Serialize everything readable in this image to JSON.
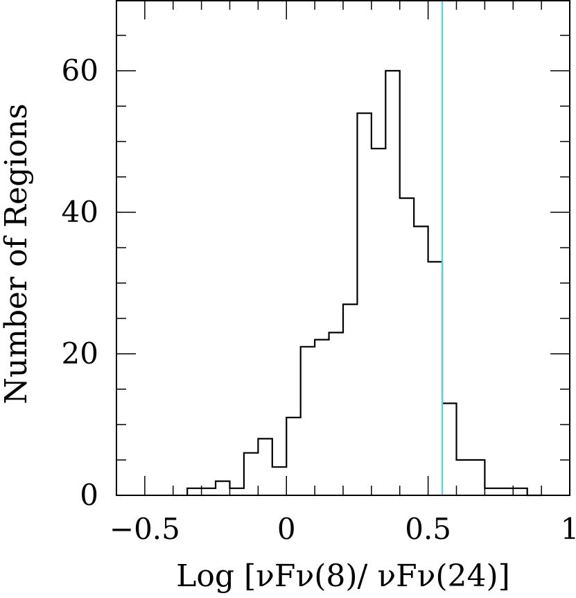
{
  "chart_data": {
    "type": "histogram",
    "xlabel": "Log [νFν(8)/ νFν(24)]",
    "ylabel": "Number of Regions",
    "xlim": [
      -0.6,
      1.0
    ],
    "ylim": [
      0,
      70
    ],
    "x_ticks": [
      {
        "value": -0.5,
        "label": "−0.5"
      },
      {
        "value": 0,
        "label": "0"
      },
      {
        "value": 0.5,
        "label": "0.5"
      },
      {
        "value": 1,
        "label": "1"
      }
    ],
    "y_ticks": [
      {
        "value": 0,
        "label": "0"
      },
      {
        "value": 20,
        "label": "20"
      },
      {
        "value": 40,
        "label": "40"
      },
      {
        "value": 60,
        "label": "60"
      }
    ],
    "x_minor_step": 0.1,
    "y_minor_step": 5,
    "grid": false,
    "bin_edges": [
      -0.35,
      -0.3,
      -0.25,
      -0.2,
      -0.15,
      -0.1,
      -0.05,
      0.0,
      0.05,
      0.1,
      0.15,
      0.2,
      0.25,
      0.3,
      0.35,
      0.4,
      0.45,
      0.5,
      0.55,
      0.6,
      0.65,
      0.7,
      0.75,
      0.8,
      0.85,
      0.9
    ],
    "counts": [
      1,
      1,
      2,
      1,
      6,
      8,
      4,
      11,
      21,
      22,
      23,
      27,
      54,
      49,
      60,
      42,
      38,
      33,
      13,
      5,
      5,
      1,
      1,
      1,
      0
    ],
    "vertical_line": {
      "x": 0.55,
      "color": "#4fd3e6"
    },
    "line_color": "#000000"
  }
}
